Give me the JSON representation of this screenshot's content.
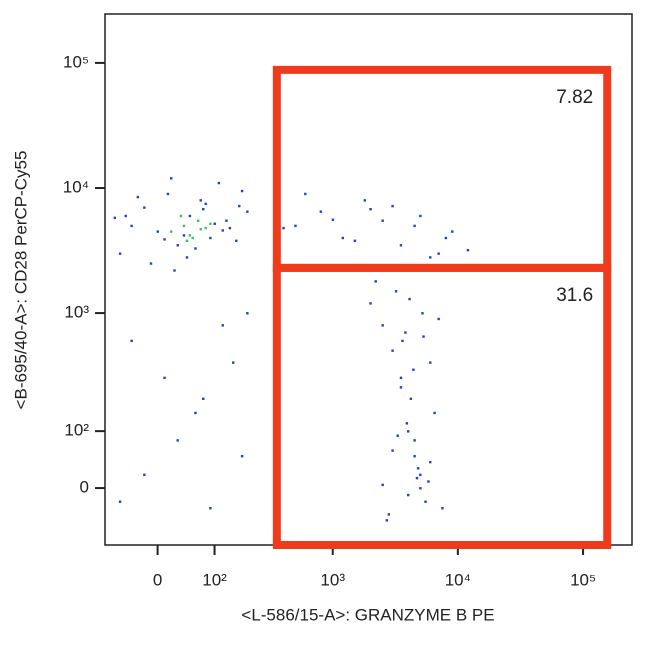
{
  "chart_data": {
    "type": "scatter",
    "xlabel": "<L-586/15-A>: GRANZYME B PE",
    "ylabel": "<B-695/40-A>: CD28 PerCP-Cy55",
    "xscale": {
      "type": "asinh",
      "width": 80
    },
    "yscale": {
      "type": "asinh",
      "width": 80
    },
    "xlim": [
      -90,
      246000
    ],
    "ylim": [
      -100,
      246000
    ],
    "xticks": [
      0,
      {
        "value": 100,
        "label": "10²"
      },
      {
        "value": 1000,
        "label": "10³"
      },
      {
        "value": 10000,
        "label": "10⁴"
      },
      {
        "value": 100000,
        "label": "10⁵"
      }
    ],
    "yticks": [
      0,
      {
        "value": 100,
        "label": "10²"
      },
      {
        "value": 1000,
        "label": "10³"
      },
      {
        "value": 10000,
        "label": "10⁴"
      },
      {
        "value": 100000,
        "label": "10⁵"
      }
    ],
    "series": [
      {
        "color": "#1f3fd0",
        "x": [
          -60,
          -40,
          -20,
          0,
          15,
          30,
          50,
          70,
          90,
          110,
          130,
          160,
          200,
          -50,
          -10,
          20,
          40,
          60,
          80,
          100,
          140,
          180,
          -30,
          10,
          45,
          75,
          120,
          170,
          -70,
          25,
          350,
          500,
          800,
          1200,
          1800,
          2500,
          3500,
          5000,
          7000,
          9000,
          12000,
          600,
          1500,
          3000,
          4500,
          6000,
          8000,
          400,
          1000,
          2000,
          2000,
          2500,
          3000,
          3500,
          4000,
          4500,
          5000,
          5500,
          6000,
          7000,
          3200,
          3800,
          4200,
          4800,
          5200,
          2800,
          6500,
          3600,
          4400,
          5800,
          3000,
          4000,
          5000,
          2500,
          3500,
          4500,
          7500,
          2200,
          6000,
          4100,
          3300,
          4700,
          5300,
          3900,
          2700,
          -40,
          10,
          60,
          120,
          180,
          -20,
          90,
          150,
          30,
          200,
          -60,
          75
        ],
        "y": [
          3000,
          5000,
          7000,
          4500,
          9000,
          3500,
          6000,
          8000,
          4000,
          11000,
          5500,
          3800,
          6500,
          6000,
          2500,
          12000,
          4200,
          3300,
          7500,
          5200,
          4800,
          9500,
          8500,
          3900,
          2800,
          6800,
          4600,
          7200,
          5800,
          2200,
          7000,
          5000,
          6500,
          4000,
          8000,
          5500,
          3500,
          6000,
          3000,
          4500,
          3200,
          9000,
          3800,
          7200,
          5000,
          2800,
          4000,
          4800,
          5600,
          6800,
          1200,
          800,
          500,
          300,
          100,
          50,
          0,
          -20,
          400,
          900,
          1500,
          700,
          200,
          30,
          1000,
          -40,
          150,
          600,
          350,
          10,
          60,
          -10,
          20,
          5,
          250,
          80,
          -30,
          1800,
          40,
          1300,
          90,
          15,
          650,
          120,
          -50,
          600,
          300,
          150,
          800,
          50,
          20,
          -30,
          400,
          80,
          1000,
          -20,
          200
        ]
      },
      {
        "color": "#3cc060",
        "x": [
          20,
          40,
          55,
          65,
          80,
          35,
          50,
          70,
          90,
          45
        ],
        "y": [
          4500,
          5000,
          4000,
          5500,
          4800,
          6000,
          4200,
          4700,
          5200,
          3800
        ]
      }
    ],
    "gate_color": "#f03a1c",
    "gates": [
      {
        "label": "7.82",
        "x": [
          354,
          156000
        ],
        "y": [
          2300,
          88000
        ]
      },
      {
        "label": "31.6",
        "x": [
          354,
          156000
        ],
        "y": [
          -100,
          2300
        ]
      }
    ]
  }
}
